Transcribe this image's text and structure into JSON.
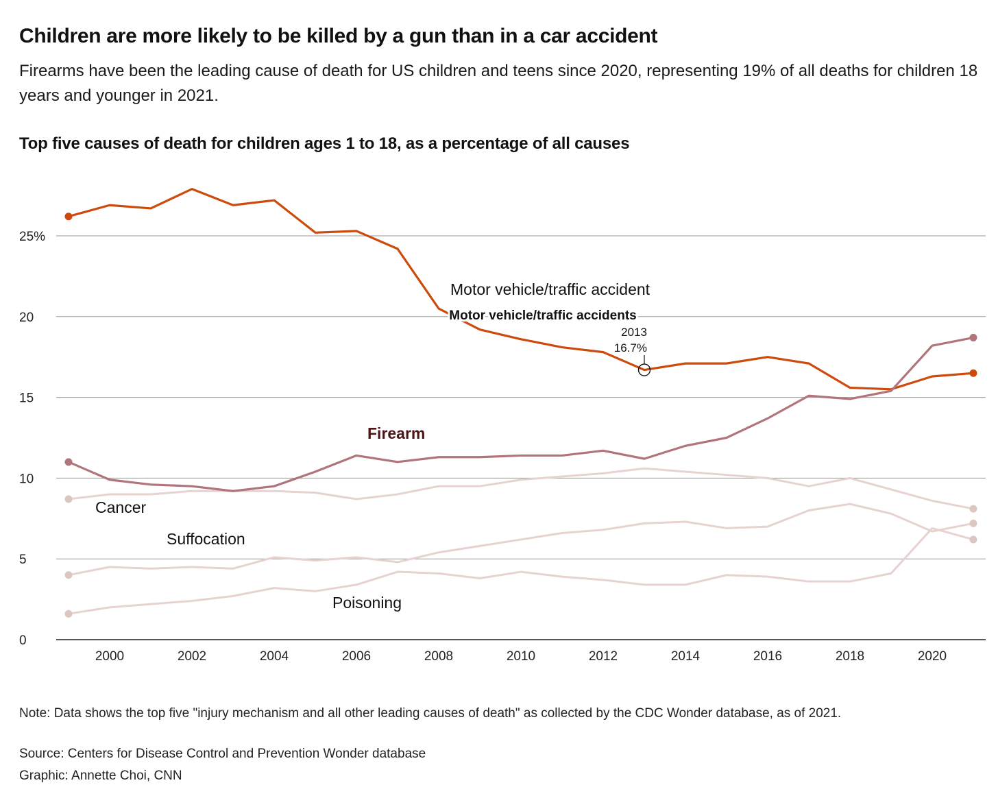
{
  "header": {
    "title": "Children are more likely to be killed by a gun than in a car accident",
    "subtitle": "Firearms have been the leading cause of death for US children and teens since 2020, representing 19% of all deaths for children 18 years and younger in 2021."
  },
  "footer": {
    "note": "Note: Data shows the top five \"injury mechanism and all other leading causes of death\" as collected by the CDC Wonder database, as of 2021.",
    "source": "Source: Centers for Disease Control and Prevention Wonder database",
    "credit": "Graphic: Annette Choi, CNN"
  },
  "chart_data": {
    "type": "line",
    "title": "Top five causes of death for children ages 1 to 18, as a percentage of all causes",
    "xlabel": "",
    "ylabel": "",
    "xlim": [
      1999,
      2021
    ],
    "ylim": [
      0,
      27.9
    ],
    "grid": true,
    "x": [
      1999,
      2000,
      2001,
      2002,
      2003,
      2004,
      2005,
      2006,
      2007,
      2008,
      2009,
      2010,
      2011,
      2012,
      2013,
      2014,
      2015,
      2016,
      2017,
      2018,
      2019,
      2020,
      2021
    ],
    "x_ticks": [
      "2000",
      "2002",
      "2004",
      "2006",
      "2008",
      "2010",
      "2012",
      "2014",
      "2016",
      "2018",
      "2020"
    ],
    "y_ticks": [
      "0",
      "5",
      "10",
      "15",
      "20",
      "25%"
    ],
    "series": [
      {
        "name": "Motor vehicle/traffic accidents",
        "color": "#cc4b0c",
        "emphasis": "strong",
        "values": [
          26.2,
          26.9,
          26.7,
          27.9,
          26.9,
          27.2,
          25.2,
          25.3,
          24.2,
          20.5,
          19.2,
          18.6,
          18.1,
          17.8,
          16.7,
          17.1,
          17.1,
          17.5,
          17.1,
          15.6,
          15.5,
          16.3,
          16.5
        ]
      },
      {
        "name": "Firearm",
        "color": "#b0747a",
        "emphasis": "strong",
        "values": [
          11.0,
          9.9,
          9.6,
          9.5,
          9.2,
          9.5,
          10.4,
          11.4,
          11.0,
          11.3,
          11.3,
          11.4,
          11.4,
          11.7,
          11.2,
          12.0,
          12.5,
          13.7,
          15.1,
          14.9,
          15.4,
          18.2,
          18.7
        ]
      },
      {
        "name": "Cancer",
        "color": "#e6d3cf",
        "emphasis": "light",
        "values": [
          8.7,
          9.0,
          9.0,
          9.2,
          9.2,
          9.2,
          9.1,
          8.7,
          9.0,
          9.5,
          9.5,
          9.9,
          10.1,
          10.3,
          10.6,
          10.4,
          10.2,
          10.0,
          9.5,
          10.0,
          9.3,
          8.6,
          8.1
        ]
      },
      {
        "name": "Suffocation",
        "color": "#e6d3cf",
        "emphasis": "light",
        "values": [
          4.0,
          4.5,
          4.4,
          4.5,
          4.4,
          5.1,
          4.9,
          5.1,
          4.8,
          5.4,
          5.8,
          6.2,
          6.6,
          6.8,
          7.2,
          7.3,
          6.9,
          7.0,
          8.0,
          8.4,
          7.8,
          6.7,
          7.2
        ]
      },
      {
        "name": "Poisoning",
        "color": "#e6d3cf",
        "emphasis": "light",
        "values": [
          1.6,
          2.0,
          2.2,
          2.4,
          2.7,
          3.2,
          3.0,
          3.4,
          4.2,
          4.1,
          3.8,
          4.2,
          3.9,
          3.7,
          3.4,
          3.4,
          4.0,
          3.9,
          3.6,
          3.6,
          4.1,
          6.9,
          6.2
        ]
      }
    ],
    "annotations": {
      "ghost_label": "Motor vehicle/traffic accident",
      "callout_year": "2013",
      "callout_value": "16.7%",
      "series_labels": {
        "motor": "Motor vehicle/traffic accidents",
        "firearm": "Firearm",
        "cancer": "Cancer",
        "suffocation": "Suffocation",
        "poisoning": "Poisoning"
      }
    }
  }
}
